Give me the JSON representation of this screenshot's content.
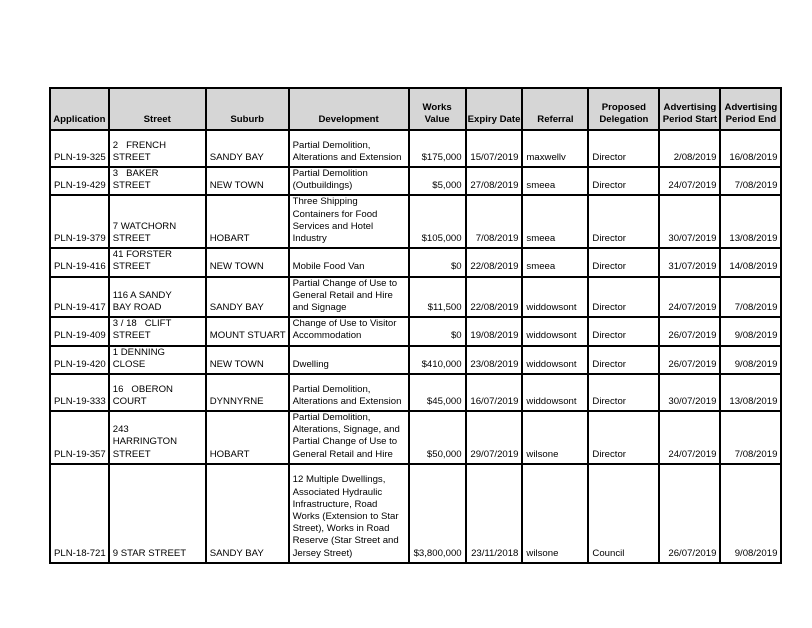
{
  "page": {
    "background_color": "#ffffff",
    "header_bg_color": "#d6d6d6",
    "border_color": "#000000",
    "text_color": "#000000"
  },
  "table": {
    "header": {
      "application": "Application",
      "street": "Street",
      "suburb": "Suburb",
      "development": "Development",
      "works_value": "Works\nValue",
      "expiry_date": "Expiry Date",
      "referral": "Referral",
      "proposed_delegation": "Proposed\nDelegation",
      "advertising_period_start": "Advertising\nPeriod Start",
      "advertising_period_end": "Advertising\nPeriod End"
    },
    "rows": [
      {
        "application": "PLN-19-325",
        "street": "2   FRENCH\nSTREET",
        "suburb": "SANDY BAY",
        "development": "Partial Demolition,\nAlterations and Extension",
        "works_value": "$175,000",
        "expiry_date": "15/07/2019",
        "referral": "maxwellv",
        "proposed_delegation": "Director",
        "advertising_period_start": "2/08/2019",
        "advertising_period_end": "16/08/2019"
      },
      {
        "application": "PLN-19-429",
        "street": "3   BAKER\nSTREET",
        "suburb": "NEW TOWN",
        "development": "Partial Demolition\n(Outbuildings)",
        "works_value": "$5,000",
        "expiry_date": "27/08/2019",
        "referral": "smeea",
        "proposed_delegation": "Director",
        "advertising_period_start": "24/07/2019",
        "advertising_period_end": "7/08/2019"
      },
      {
        "application": "PLN-19-379",
        "street": "7 WATCHORN\nSTREET",
        "suburb": "HOBART",
        "development": "Three Shipping\nContainers for Food\nServices and Hotel\nIndustry",
        "works_value": "$105,000",
        "expiry_date": "7/08/2019",
        "referral": "smeea",
        "proposed_delegation": "Director",
        "advertising_period_start": "30/07/2019",
        "advertising_period_end": "13/08/2019"
      },
      {
        "application": "PLN-19-416",
        "street": "41 FORSTER\nSTREET",
        "suburb": "NEW TOWN",
        "development": "Mobile Food Van",
        "works_value": "$0",
        "expiry_date": "22/08/2019",
        "referral": "smeea",
        "proposed_delegation": "Director",
        "advertising_period_start": "31/07/2019",
        "advertising_period_end": "14/08/2019"
      },
      {
        "application": "PLN-19-417",
        "street": "116 A SANDY\nBAY ROAD",
        "suburb": "SANDY BAY",
        "development": "Partial Change of Use to\nGeneral Retail and Hire\nand Signage",
        "works_value": "$11,500",
        "expiry_date": "22/08/2019",
        "referral": "widdowsont",
        "proposed_delegation": "Director",
        "advertising_period_start": "24/07/2019",
        "advertising_period_end": "7/08/2019"
      },
      {
        "application": "PLN-19-409",
        "street": "3 / 18   CLIFT\nSTREET",
        "suburb": "MOUNT STUART",
        "development": "Change of Use to Visitor\nAccommodation",
        "works_value": "$0",
        "expiry_date": "19/08/2019",
        "referral": "widdowsont",
        "proposed_delegation": "Director",
        "advertising_period_start": "26/07/2019",
        "advertising_period_end": "9/08/2019"
      },
      {
        "application": "PLN-19-420",
        "street": "1 DENNING\nCLOSE",
        "suburb": "NEW TOWN",
        "development": "Dwelling",
        "works_value": "$410,000",
        "expiry_date": "23/08/2019",
        "referral": "widdowsont",
        "proposed_delegation": "Director",
        "advertising_period_start": "26/07/2019",
        "advertising_period_end": "9/08/2019"
      },
      {
        "application": "PLN-19-333",
        "street": "16   OBERON\nCOURT",
        "suburb": "DYNNYRNE",
        "development": "Partial Demolition,\nAlterations and Extension",
        "works_value": "$45,000",
        "expiry_date": "16/07/2019",
        "referral": "widdowsont",
        "proposed_delegation": "Director",
        "advertising_period_start": "30/07/2019",
        "advertising_period_end": "13/08/2019"
      },
      {
        "application": "PLN-19-357",
        "street": "243\nHARRINGTON\nSTREET",
        "suburb": "HOBART",
        "development": "Partial Demolition,\nAlterations, Signage, and\nPartial Change of Use to\nGeneral Retail and Hire",
        "works_value": "$50,000",
        "expiry_date": "29/07/2019",
        "referral": "wilsone",
        "proposed_delegation": "Director",
        "advertising_period_start": "24/07/2019",
        "advertising_period_end": "7/08/2019"
      },
      {
        "application": "PLN-18-721",
        "street": "9 STAR STREET",
        "suburb": "SANDY BAY",
        "development": "12 Multiple Dwellings,\nAssociated Hydraulic\nInfrastructure, Road\nWorks (Extension to Star\nStreet), Works in Road\nReserve (Star Street and\nJersey Street)",
        "works_value": "$3,800,000",
        "expiry_date": "23/11/2018",
        "referral": "wilsone",
        "proposed_delegation": "Council",
        "advertising_period_start": "26/07/2019",
        "advertising_period_end": "9/08/2019"
      }
    ]
  }
}
